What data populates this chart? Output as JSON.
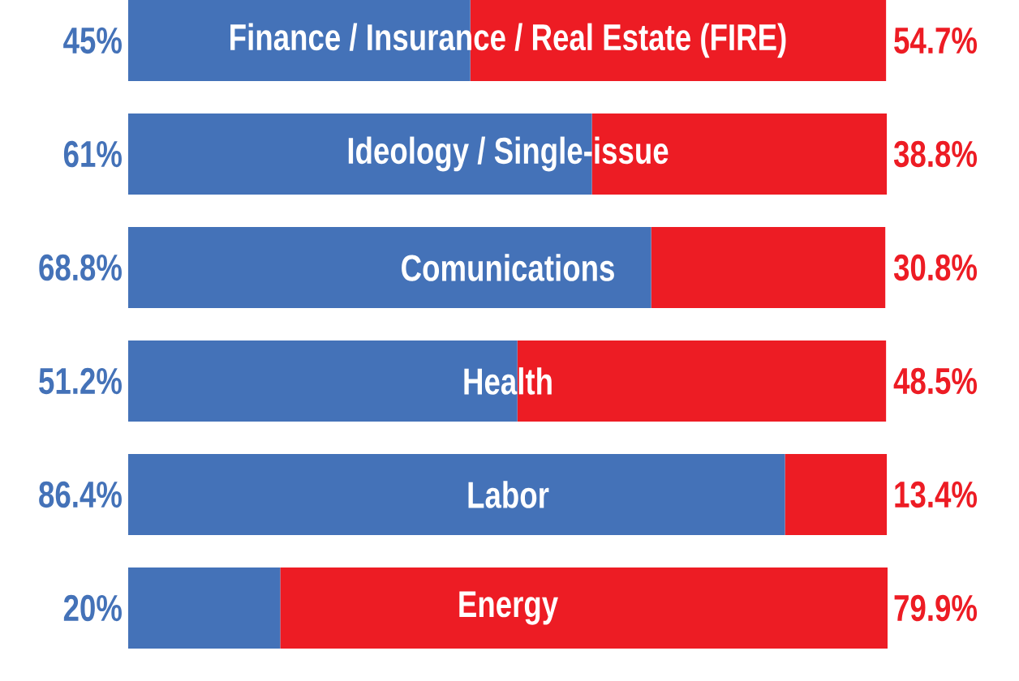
{
  "chart_data": {
    "type": "bar",
    "orientation": "horizontal",
    "stacked": true,
    "tick_labels": false,
    "categories": [
      "Finance / Insurance / Real Estate (FIRE)",
      "Ideology / Single-issue",
      "Comunications",
      "Health",
      "Labor",
      "Energy",
      null
    ],
    "series": [
      {
        "color": "#4472b8",
        "values": [
          45,
          61,
          68.8,
          51.2,
          86.4,
          20,
          null
        ],
        "value_labels": [
          "45%",
          "61%",
          "68.8%",
          "51.2%",
          "86.4%",
          "20%",
          null
        ]
      },
      {
        "color": "#ed1c24",
        "values": [
          54.7,
          38.8,
          30.8,
          48.5,
          13.4,
          79.9,
          null
        ],
        "value_labels": [
          "54.7%",
          "38.8%",
          "30.8%",
          "48.5%",
          "13.4%",
          "79.9%",
          null
        ]
      }
    ]
  }
}
